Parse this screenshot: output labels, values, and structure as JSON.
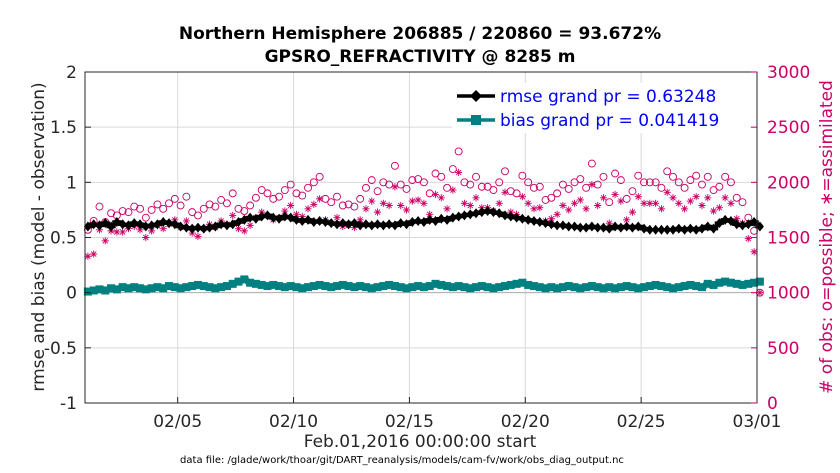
{
  "chart_data": {
    "type": "line",
    "title": "Northern Hemisphere 206885 / 220860 = 93.672%",
    "subtitle": "GPSRO_REFRACTIVITY @ 8285 m",
    "xlabel": "Feb.01,2016 00:00:00 start",
    "ylabel": "rmse and bias (model - observation)",
    "y2label": "# of obs: o=possible; ∗=assimilated",
    "footnote": "data file: /glade/work/thoar/git/DART_reanalysis/models/cam-fv/work/obs_diag_output.nc",
    "xlim": [
      0,
      29
    ],
    "ylim": [
      -1,
      2
    ],
    "y2lim": [
      0,
      3000
    ],
    "xticks": [
      {
        "x": 4,
        "label": "02/05"
      },
      {
        "x": 9,
        "label": "02/10"
      },
      {
        "x": 14,
        "label": "02/15"
      },
      {
        "x": 19,
        "label": "02/20"
      },
      {
        "x": 24,
        "label": "02/25"
      },
      {
        "x": 29,
        "label": "03/01"
      }
    ],
    "yticks": [
      "-1",
      "-0.5",
      "0",
      "0.5",
      "1",
      "1.5",
      "2"
    ],
    "y2ticks": [
      "0",
      "500",
      "1000",
      "1500",
      "2000",
      "2500",
      "3000"
    ],
    "grid": true,
    "legend": "top-right",
    "colors": {
      "rmse": "#000000",
      "bias": "#008080",
      "counts": "#cc0066",
      "legend_text": "#0000ff"
    },
    "series": [
      {
        "name": "rmse grand pr = 0.63248",
        "axis": "left",
        "step": 0.25,
        "values": [
          0.6,
          0.62,
          0.61,
          0.63,
          0.6,
          0.64,
          0.62,
          0.61,
          0.63,
          0.62,
          0.6,
          0.61,
          0.62,
          0.64,
          0.63,
          0.62,
          0.6,
          0.59,
          0.58,
          0.59,
          0.58,
          0.59,
          0.6,
          0.62,
          0.61,
          0.62,
          0.64,
          0.66,
          0.68,
          0.67,
          0.69,
          0.7,
          0.68,
          0.67,
          0.69,
          0.68,
          0.66,
          0.65,
          0.66,
          0.64,
          0.65,
          0.64,
          0.63,
          0.62,
          0.63,
          0.62,
          0.63,
          0.61,
          0.62,
          0.61,
          0.62,
          0.61,
          0.62,
          0.61,
          0.63,
          0.62,
          0.64,
          0.65,
          0.64,
          0.66,
          0.65,
          0.67,
          0.66,
          0.68,
          0.69,
          0.7,
          0.71,
          0.72,
          0.73,
          0.74,
          0.73,
          0.72,
          0.7,
          0.69,
          0.68,
          0.67,
          0.66,
          0.65,
          0.64,
          0.63,
          0.62,
          0.61,
          0.61,
          0.6,
          0.6,
          0.59,
          0.59,
          0.6,
          0.59,
          0.59,
          0.58,
          0.6,
          0.59,
          0.6,
          0.59,
          0.6,
          0.58,
          0.57,
          0.57,
          0.57,
          0.57,
          0.57,
          0.58,
          0.57,
          0.58,
          0.57,
          0.58,
          0.6,
          0.58,
          0.63,
          0.66,
          0.65,
          0.62,
          0.61,
          0.62,
          0.64,
          0.6
        ]
      },
      {
        "name": "bias grand pr = 0.041419",
        "axis": "left",
        "step": 0.25,
        "values": [
          0.01,
          0.02,
          0.03,
          0.02,
          0.04,
          0.03,
          0.05,
          0.04,
          0.05,
          0.04,
          0.03,
          0.04,
          0.05,
          0.04,
          0.06,
          0.05,
          0.04,
          0.05,
          0.06,
          0.07,
          0.06,
          0.05,
          0.04,
          0.05,
          0.06,
          0.08,
          0.1,
          0.12,
          0.09,
          0.08,
          0.07,
          0.06,
          0.07,
          0.06,
          0.05,
          0.06,
          0.05,
          0.04,
          0.05,
          0.06,
          0.07,
          0.06,
          0.05,
          0.06,
          0.07,
          0.06,
          0.05,
          0.06,
          0.05,
          0.04,
          0.05,
          0.06,
          0.07,
          0.06,
          0.05,
          0.04,
          0.05,
          0.06,
          0.05,
          0.06,
          0.08,
          0.07,
          0.06,
          0.05,
          0.06,
          0.05,
          0.04,
          0.05,
          0.06,
          0.05,
          0.04,
          0.05,
          0.06,
          0.07,
          0.08,
          0.09,
          0.07,
          0.06,
          0.05,
          0.04,
          0.05,
          0.04,
          0.05,
          0.06,
          0.05,
          0.04,
          0.05,
          0.06,
          0.05,
          0.04,
          0.05,
          0.04,
          0.05,
          0.06,
          0.05,
          0.04,
          0.05,
          0.06,
          0.07,
          0.06,
          0.05,
          0.04,
          0.05,
          0.06,
          0.07,
          0.06,
          0.05,
          0.08,
          0.07,
          0.09,
          0.1,
          0.09,
          0.08,
          0.07,
          0.08,
          0.09,
          0.1
        ]
      }
    ],
    "counts": {
      "axis": "right",
      "step": 0.25,
      "possible": [
        1570,
        1650,
        1780,
        1640,
        1720,
        1700,
        1740,
        1730,
        1780,
        1760,
        1680,
        1750,
        1800,
        1760,
        1810,
        1850,
        1790,
        1870,
        1730,
        1700,
        1760,
        1800,
        1780,
        1840,
        1810,
        1900,
        1760,
        1740,
        1790,
        1860,
        1930,
        1900,
        1850,
        1870,
        1930,
        1980,
        1900,
        1880,
        1950,
        2000,
        2050,
        1850,
        1820,
        1870,
        1790,
        1800,
        1780,
        1850,
        1950,
        2020,
        1920,
        2000,
        1980,
        2150,
        1980,
        1940,
        2020,
        2030,
        2000,
        1900,
        2080,
        2050,
        1950,
        2120,
        2280,
        2000,
        1980,
        2050,
        1960,
        1960,
        1930,
        2000,
        2100,
        1920,
        1900,
        2060,
        2000,
        1950,
        1960,
        1840,
        1860,
        1900,
        1980,
        1940,
        2000,
        2030,
        1950,
        2170,
        1980,
        2050,
        1820,
        2080,
        2020,
        1850,
        1920,
        2060,
        2000,
        2000,
        2000,
        1950,
        2100,
        2050,
        2000,
        1950,
        2020,
        2060,
        1980,
        2050,
        1930,
        1960,
        2050,
        2000,
        1860,
        1820,
        1680,
        1560,
        1000
      ],
      "assimilated": [
        1330,
        1350,
        1570,
        1470,
        1560,
        1550,
        1550,
        1580,
        1600,
        1570,
        1500,
        1560,
        1610,
        1580,
        1620,
        1660,
        1590,
        1650,
        1540,
        1510,
        1580,
        1620,
        1590,
        1650,
        1620,
        1700,
        1580,
        1560,
        1610,
        1680,
        1730,
        1700,
        1660,
        1680,
        1740,
        1790,
        1710,
        1690,
        1760,
        1800,
        1850,
        1660,
        1630,
        1680,
        1600,
        1610,
        1590,
        1660,
        1760,
        1830,
        1730,
        1810,
        1790,
        1960,
        1790,
        1750,
        1830,
        1840,
        1810,
        1710,
        1890,
        1860,
        1760,
        1930,
        2090,
        1810,
        1790,
        1860,
        1770,
        1770,
        1740,
        1810,
        1910,
        1730,
        1710,
        1870,
        1810,
        1760,
        1770,
        1650,
        1670,
        1710,
        1790,
        1750,
        1810,
        1840,
        1760,
        1980,
        1790,
        1860,
        1630,
        1890,
        1830,
        1660,
        1730,
        1870,
        1810,
        1810,
        1810,
        1760,
        1910,
        1860,
        1810,
        1760,
        1830,
        1870,
        1790,
        1860,
        1740,
        1770,
        1860,
        1810,
        1670,
        1630,
        1490,
        1370,
        1000
      ]
    }
  }
}
